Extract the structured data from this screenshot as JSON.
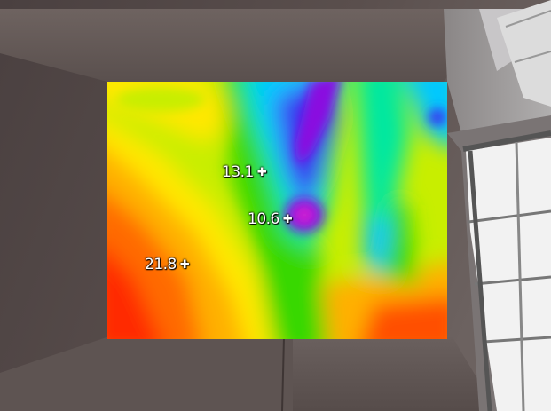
{
  "caption": "",
  "thermal_image": {
    "palette": [
      "#6a00c8",
      "#3a38f0",
      "#00c8ff",
      "#00e8a0",
      "#38d800",
      "#c8ee00",
      "#ffe800",
      "#ff9a00",
      "#ff3a00",
      "#e80010"
    ],
    "markers": [
      {
        "label": "13.1"
      },
      {
        "label": "10.6"
      },
      {
        "label": "21.8"
      }
    ]
  }
}
